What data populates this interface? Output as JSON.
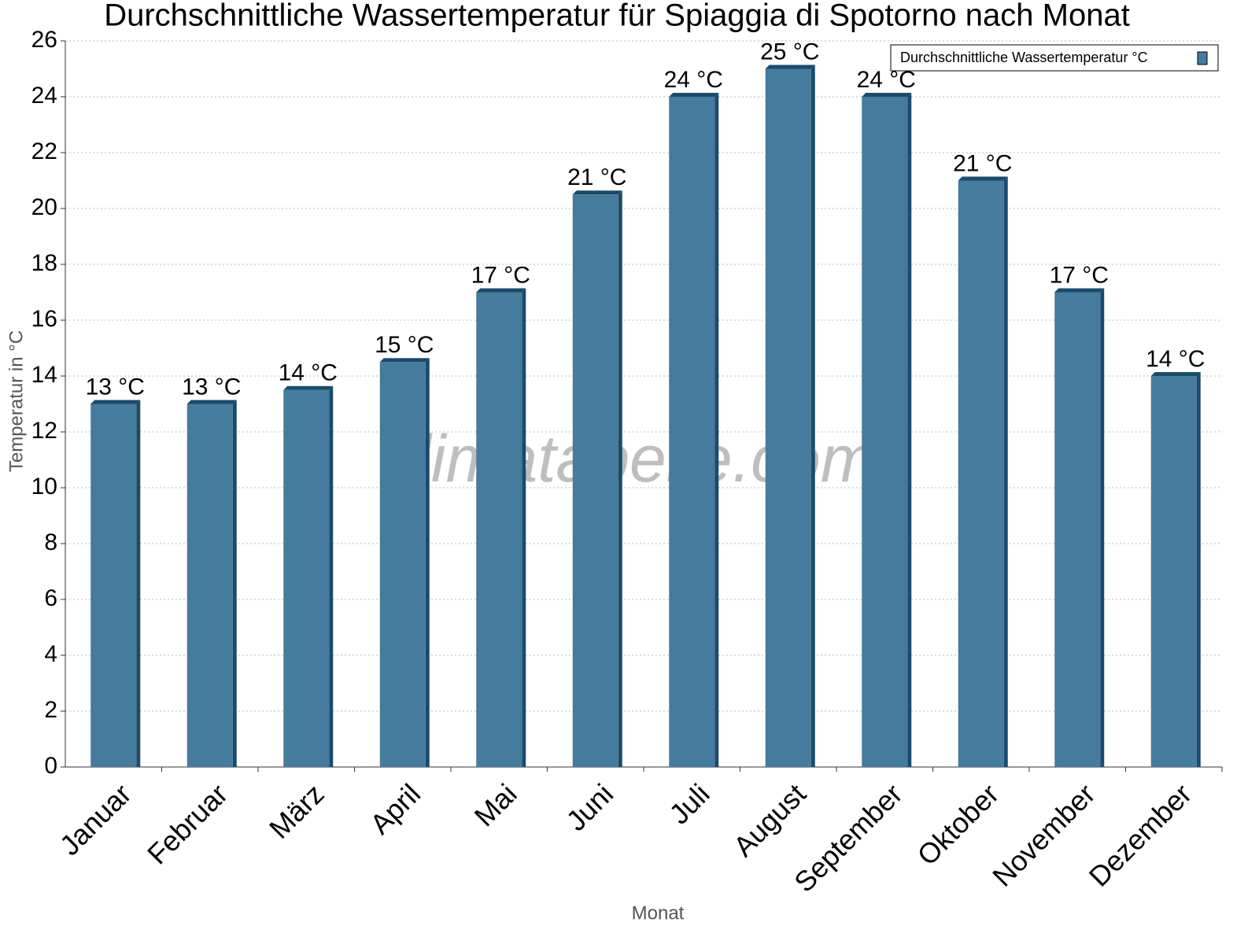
{
  "chart_data": {
    "type": "bar",
    "title": "Durchschnittliche Wassertemperatur für Spiaggia di Spotorno nach Monat",
    "x_label": "Monat",
    "y_label": "Temperatur in °C",
    "watermark": "klimatabelle.com",
    "categories": [
      "Januar",
      "Februar",
      "März",
      "April",
      "Mai",
      "Juni",
      "Juli",
      "August",
      "September",
      "Oktober",
      "November",
      "Dezember"
    ],
    "series": [
      {
        "name": "Durchschnittliche Wassertemperatur °C",
        "color": "#457b9d",
        "values": [
          13,
          13,
          13.5,
          14.5,
          17,
          20.5,
          24,
          25,
          24,
          21,
          17,
          14
        ],
        "value_labels": [
          "13 °C",
          "13 °C",
          "14 °C",
          "15 °C",
          "17 °C",
          "21 °C",
          "24 °C",
          "25 °C",
          "24 °C",
          "21 °C",
          "17 °C",
          "14 °C"
        ]
      }
    ],
    "ylim": [
      0,
      26
    ],
    "yticks": [
      0,
      2,
      4,
      6,
      8,
      10,
      12,
      14,
      16,
      18,
      20,
      22,
      24,
      26
    ],
    "grid": true,
    "legend": "top-right"
  }
}
